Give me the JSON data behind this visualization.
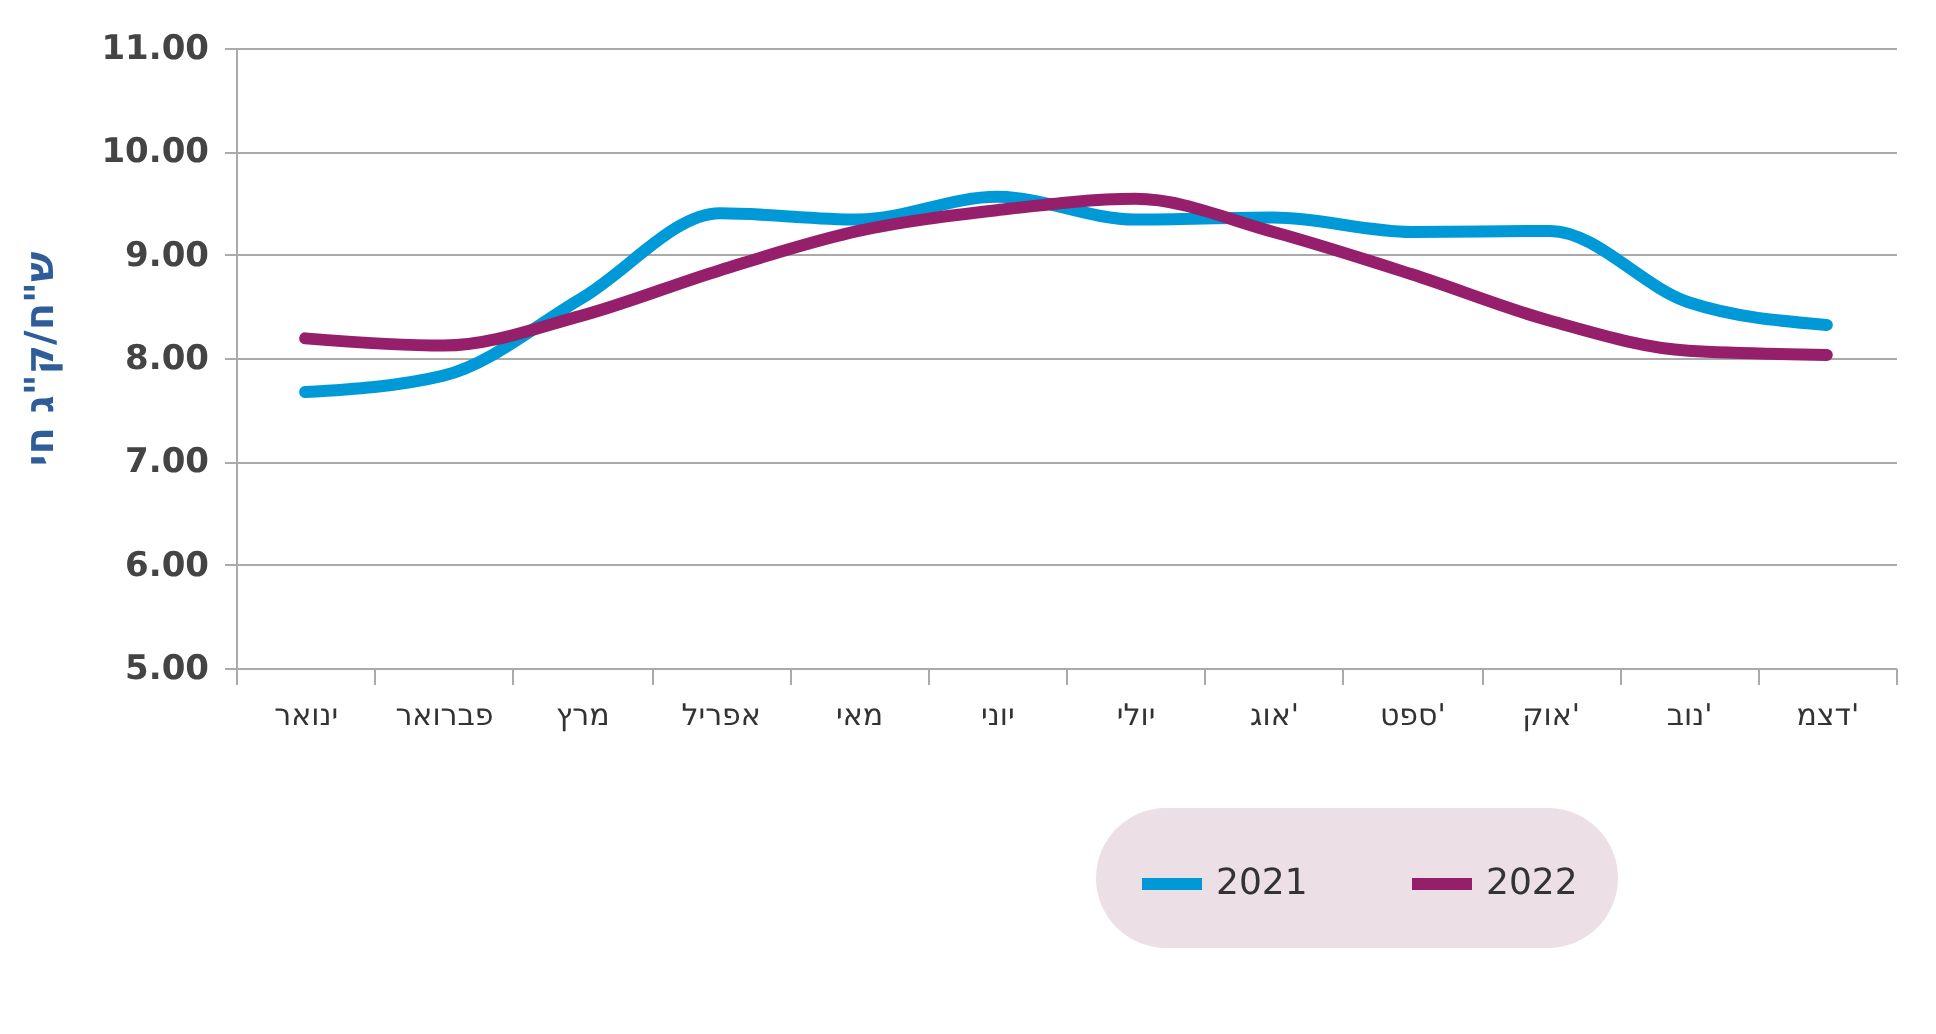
{
  "chart_data": {
    "type": "line",
    "ylabel": "ש\"ח/ק\"ג חי",
    "categories": [
      "ינואר",
      "פברואר",
      "מרץ",
      "אפריל",
      "מאי",
      "יוני",
      "יולי",
      "אוג'",
      "ספט'",
      "אוק'",
      "נוב'",
      "דצמ'"
    ],
    "series": [
      {
        "name": "2021",
        "color": "#0099d8",
        "values": [
          7.67,
          7.83,
          8.58,
          9.4,
          9.34,
          9.56,
          9.34,
          9.36,
          9.22,
          9.23,
          8.54,
          8.32
        ]
      },
      {
        "name": "2022",
        "color": "#951f6a",
        "values": [
          8.19,
          8.12,
          8.41,
          8.85,
          9.23,
          9.43,
          9.54,
          9.22,
          8.81,
          8.36,
          8.07,
          8.03
        ]
      }
    ],
    "ylim": [
      5,
      11
    ],
    "yticks": [
      {
        "value": 5,
        "label": "5.00"
      },
      {
        "value": 6,
        "label": "6.00"
      },
      {
        "value": 7,
        "label": "7.00"
      },
      {
        "value": 8,
        "label": "8.00"
      },
      {
        "value": 9,
        "label": "9.00"
      },
      {
        "value": 10,
        "label": "10.00"
      },
      {
        "value": 11,
        "label": "11.00"
      }
    ],
    "grid": "y",
    "legend": "bottom right",
    "marker": "none",
    "line_style": "solid"
  }
}
